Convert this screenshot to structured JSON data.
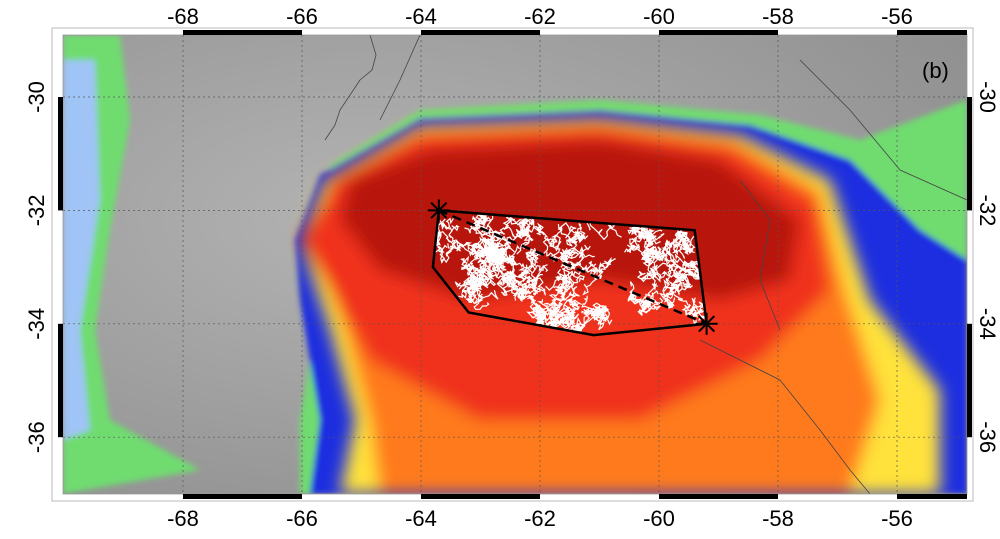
{
  "panel_label": "(b)",
  "axes": {
    "lon_ticks": [
      "-68",
      "-66",
      "-64",
      "-62",
      "-60",
      "-58",
      "-56"
    ],
    "lon_values": [
      -68,
      -66,
      -64,
      -62,
      -60,
      -58,
      -56
    ],
    "lat_ticks": [
      "-30",
      "-32",
      "-34",
      "-36"
    ],
    "lat_values": [
      -30,
      -32,
      -34,
      -36
    ],
    "lon_range": [
      -70,
      -54.8
    ],
    "lat_range": [
      -28.9,
      -37.1
    ],
    "grid": "dotted"
  },
  "colors": {
    "background_clouds": "#a8a8a8",
    "green": "#6fdc6f",
    "blue": "#1d2fe0",
    "yellow": "#ffe23a",
    "orange": "#ff7a1a",
    "red": "#f0301a",
    "dark_red": "#b81410",
    "lightning": "#ffffff",
    "polygon": "#000000"
  },
  "flash": {
    "start": [
      -63.7,
      -32.0
    ],
    "end": [
      -59.2,
      -34.0
    ],
    "hull": [
      [
        -63.7,
        -32.0
      ],
      [
        -59.4,
        -32.35
      ],
      [
        -59.2,
        -34.0
      ],
      [
        -61.1,
        -34.2
      ],
      [
        -63.2,
        -33.8
      ],
      [
        -63.8,
        -33.0
      ]
    ]
  }
}
